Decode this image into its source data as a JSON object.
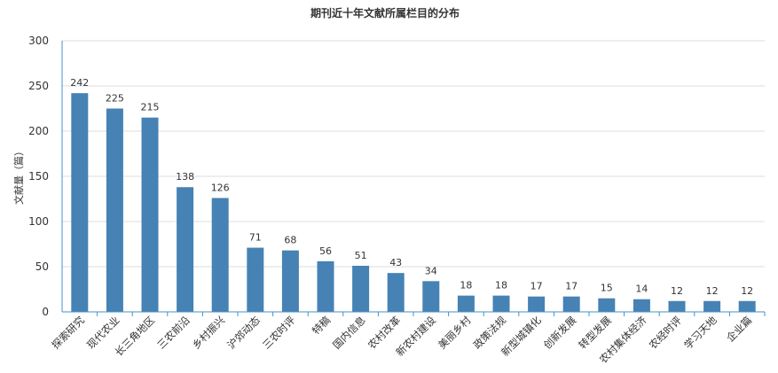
{
  "chart_data": {
    "type": "bar",
    "title": "期刊近十年文献所属栏目的分布",
    "ylabel": "文献量（篇）",
    "xlabel": "",
    "ylim": [
      0,
      300
    ],
    "yticks": [
      0,
      50,
      100,
      150,
      200,
      250,
      300
    ],
    "grid": true,
    "categories": [
      "探索研究",
      "现代农业",
      "长三角地区",
      "三农前沿",
      "乡村振兴",
      "沪郊动态",
      "三农时评",
      "特稿",
      "国内信息",
      "农村改革",
      "新农村建设",
      "美丽乡村",
      "政策法规",
      "新型城镇化",
      "创新发展",
      "转型发展",
      "农村集体经济",
      "农经时评",
      "学习天地",
      "企业篇"
    ],
    "values": [
      242,
      225,
      215,
      138,
      126,
      71,
      68,
      56,
      51,
      43,
      34,
      18,
      18,
      17,
      17,
      15,
      14,
      12,
      12,
      12
    ],
    "bar_color": "#4682b4",
    "axis_color": "#4a90c4",
    "grid_color": "#dddddd"
  }
}
